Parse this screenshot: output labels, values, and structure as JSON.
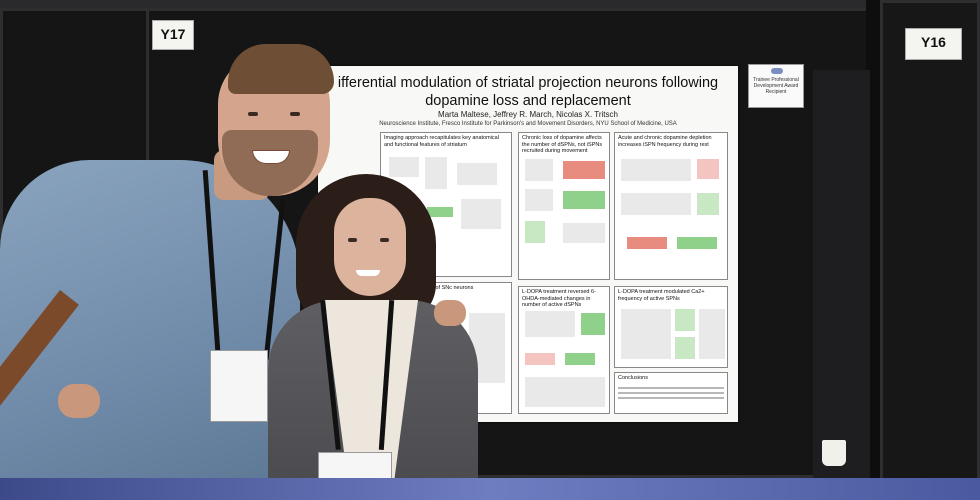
{
  "booth_tags": {
    "left": "Y17",
    "right": "Y16"
  },
  "award_card": {
    "text": "Trainee Professional Development Award Recipient"
  },
  "poster": {
    "title": "ifferential modulation of striatal projection neurons following dopamine loss and replacement",
    "authors": "Marta Maltese, Jeffrey R. March, Nicolas X. Tritsch",
    "affiliation": "Neuroscience Institute, Fresco Institute for Parkinson's and Movement Disorders, NYU School of Medicine, USA",
    "sections": [
      {
        "heading": "Imaging approach recapitulates key anatomical and functional features of striatum"
      },
      {
        "heading": "Chronic loss of dopamine affects the number of dSPNs, not iSPNs recruited during movement"
      },
      {
        "heading": "Acute and chronic dopamine depletion increases iSPN frequency during rest"
      },
      {
        "heading": "ation of SNc neurons"
      },
      {
        "heading": "L-DOPA treatment reversed 6-OHDA-mediated changes in number of active dSPNs"
      },
      {
        "heading": "L-DOPA treatment modulated Ca2+ frequency of active SPNs"
      },
      {
        "heading": "Conclusions"
      }
    ]
  },
  "colors": {
    "poster_bg": "#f8f8f6",
    "board": "#151516",
    "red_trace": "#e05a4a",
    "green_trace": "#5cbd56",
    "floor": "#5a68b0"
  }
}
